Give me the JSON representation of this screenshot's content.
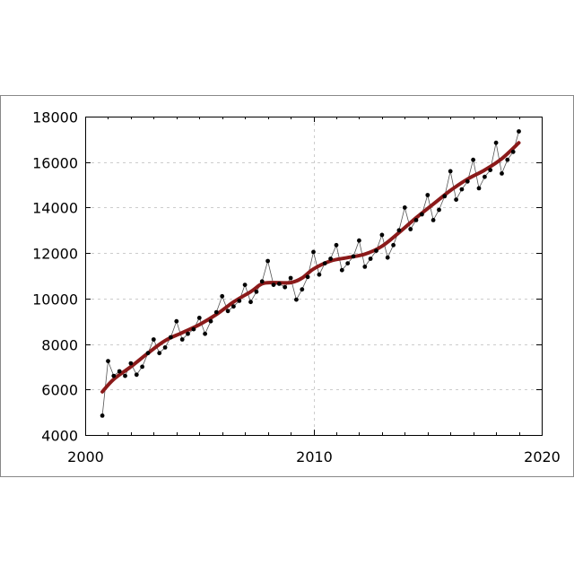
{
  "chart_data": {
    "type": "line",
    "title": "",
    "xlabel": "",
    "ylabel": "",
    "xlim": [
      2000,
      2020
    ],
    "ylim": [
      4000,
      18000
    ],
    "x_ticks": [
      2000,
      2010,
      2020
    ],
    "y_ticks": [
      4000,
      6000,
      8000,
      10000,
      12000,
      14000,
      16000,
      18000
    ],
    "grid": true,
    "legend": "none",
    "colors": {
      "raw": "#555555",
      "points": "#000000",
      "trend": "#8b1a1a",
      "grid": "#cccccc"
    },
    "series": [
      {
        "role": "observations",
        "style": "thin line with dot markers",
        "points": [
          [
            2000.75,
            4850
          ],
          [
            2001.0,
            7250
          ],
          [
            2001.25,
            6600
          ],
          [
            2001.5,
            6800
          ],
          [
            2001.75,
            6600
          ],
          [
            2002.0,
            7150
          ],
          [
            2002.25,
            6650
          ],
          [
            2002.5,
            7000
          ],
          [
            2002.75,
            7600
          ],
          [
            2003.0,
            8200
          ],
          [
            2003.25,
            7600
          ],
          [
            2003.5,
            7850
          ],
          [
            2003.75,
            8300
          ],
          [
            2004.0,
            9000
          ],
          [
            2004.25,
            8200
          ],
          [
            2004.5,
            8450
          ],
          [
            2004.75,
            8650
          ],
          [
            2005.0,
            9150
          ],
          [
            2005.25,
            8450
          ],
          [
            2005.5,
            9000
          ],
          [
            2005.75,
            9400
          ],
          [
            2006.0,
            10100
          ],
          [
            2006.25,
            9450
          ],
          [
            2006.5,
            9650
          ],
          [
            2006.75,
            9900
          ],
          [
            2007.0,
            10600
          ],
          [
            2007.25,
            9850
          ],
          [
            2007.5,
            10300
          ],
          [
            2007.75,
            10750
          ],
          [
            2008.0,
            11650
          ],
          [
            2008.25,
            10600
          ],
          [
            2008.5,
            10650
          ],
          [
            2008.75,
            10500
          ],
          [
            2009.0,
            10900
          ],
          [
            2009.25,
            9950
          ],
          [
            2009.5,
            10400
          ],
          [
            2009.75,
            10950
          ],
          [
            2010.0,
            12050
          ],
          [
            2010.25,
            11050
          ],
          [
            2010.5,
            11550
          ],
          [
            2010.75,
            11750
          ],
          [
            2011.0,
            12350
          ],
          [
            2011.25,
            11250
          ],
          [
            2011.5,
            11550
          ],
          [
            2011.75,
            11850
          ],
          [
            2012.0,
            12550
          ],
          [
            2012.25,
            11400
          ],
          [
            2012.5,
            11750
          ],
          [
            2012.75,
            12100
          ],
          [
            2013.0,
            12800
          ],
          [
            2013.25,
            11800
          ],
          [
            2013.5,
            12350
          ],
          [
            2013.75,
            13000
          ],
          [
            2014.0,
            14000
          ],
          [
            2014.25,
            13050
          ],
          [
            2014.5,
            13450
          ],
          [
            2014.75,
            13700
          ],
          [
            2015.0,
            14550
          ],
          [
            2015.25,
            13450
          ],
          [
            2015.5,
            13900
          ],
          [
            2015.75,
            14500
          ],
          [
            2016.0,
            15600
          ],
          [
            2016.25,
            14350
          ],
          [
            2016.5,
            14800
          ],
          [
            2016.75,
            15150
          ],
          [
            2017.0,
            16100
          ],
          [
            2017.25,
            14850
          ],
          [
            2017.5,
            15350
          ],
          [
            2017.75,
            15650
          ],
          [
            2018.0,
            16850
          ],
          [
            2018.25,
            15500
          ],
          [
            2018.5,
            16100
          ],
          [
            2018.75,
            16450
          ],
          [
            2019.0,
            17350
          ]
        ]
      },
      {
        "role": "trend",
        "style": "thick smooth line",
        "points": [
          [
            2000.75,
            5900
          ],
          [
            2001.25,
            6450
          ],
          [
            2002.0,
            7000
          ],
          [
            2002.75,
            7600
          ],
          [
            2003.5,
            8150
          ],
          [
            2004.25,
            8500
          ],
          [
            2005.0,
            8850
          ],
          [
            2005.75,
            9300
          ],
          [
            2006.5,
            9850
          ],
          [
            2007.25,
            10300
          ],
          [
            2007.75,
            10650
          ],
          [
            2008.25,
            10700
          ],
          [
            2009.0,
            10700
          ],
          [
            2009.5,
            10900
          ],
          [
            2010.0,
            11300
          ],
          [
            2010.75,
            11650
          ],
          [
            2011.5,
            11800
          ],
          [
            2012.25,
            11950
          ],
          [
            2013.0,
            12300
          ],
          [
            2013.75,
            12900
          ],
          [
            2014.5,
            13550
          ],
          [
            2015.25,
            14150
          ],
          [
            2016.0,
            14750
          ],
          [
            2016.75,
            15250
          ],
          [
            2017.5,
            15650
          ],
          [
            2018.25,
            16150
          ],
          [
            2019.0,
            16850
          ]
        ]
      }
    ]
  }
}
